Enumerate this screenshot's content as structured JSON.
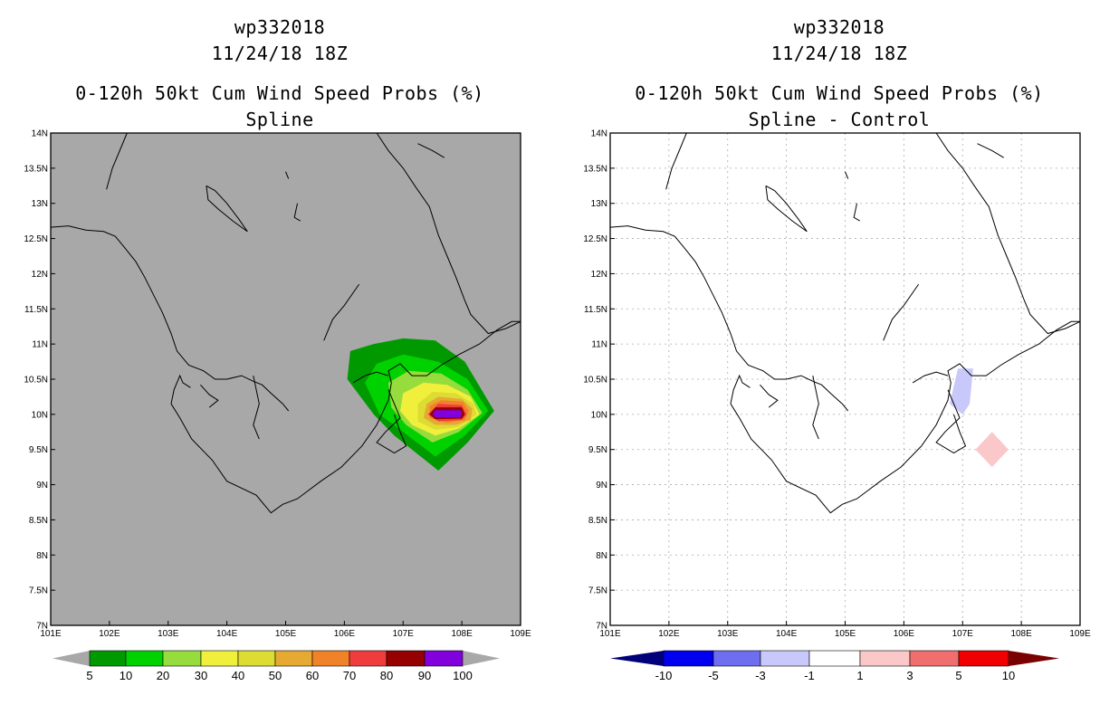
{
  "chart_data": [
    {
      "type": "heatmap",
      "storm_id": "wp332018",
      "datetime": "11/24/18 18Z",
      "title": "0-120h 50kt Cum Wind Speed Probs (%)",
      "subtitle": "Spline",
      "x_ticks": [
        "101E",
        "102E",
        "103E",
        "104E",
        "105E",
        "106E",
        "107E",
        "108E",
        "109E"
      ],
      "y_ticks": [
        "7N",
        "7.5N",
        "8N",
        "8.5N",
        "9N",
        "9.5N",
        "10N",
        "10.5N",
        "11N",
        "11.5N",
        "12N",
        "12.5N",
        "13N",
        "13.5N",
        "14N"
      ],
      "xlim": [
        101,
        109
      ],
      "ylim": [
        7,
        14
      ],
      "grid": false,
      "background": "#a8a8a8",
      "colorbar": {
        "labels": [
          "5",
          "10",
          "20",
          "30",
          "40",
          "50",
          "60",
          "70",
          "80",
          "90",
          "100"
        ],
        "colors": [
          "#009a00",
          "#00d200",
          "#96dc3c",
          "#f0f03c",
          "#dcdc32",
          "#e6aa32",
          "#f08228",
          "#f03c3c",
          "#960000",
          "#8200dc"
        ],
        "end_color": "#a8a8a8"
      },
      "max_probability_center": [
        107.9,
        10.0
      ]
    },
    {
      "type": "heatmap",
      "storm_id": "wp332018",
      "datetime": "11/24/18 18Z",
      "title": "0-120h 50kt Cum Wind Speed Probs (%)",
      "subtitle": "Spline - Control",
      "x_ticks": [
        "101E",
        "102E",
        "103E",
        "104E",
        "105E",
        "106E",
        "107E",
        "108E",
        "109E"
      ],
      "y_ticks": [
        "7N",
        "7.5N",
        "8N",
        "8.5N",
        "9N",
        "9.5N",
        "10N",
        "10.5N",
        "11N",
        "11.5N",
        "12N",
        "12.5N",
        "13N",
        "13.5N",
        "14N"
      ],
      "xlim": [
        101,
        109
      ],
      "ylim": [
        7,
        14
      ],
      "grid": true,
      "background": "#ffffff",
      "colorbar": {
        "labels": [
          "-10",
          "-5",
          "-3",
          "-1",
          "1",
          "3",
          "5",
          "10"
        ],
        "colors": [
          "#00007a",
          "#0000f0",
          "#6e6ef0",
          "#c8c8fa",
          "#ffffff",
          "#fac8c8",
          "#f06e6e",
          "#f00000",
          "#7a0000"
        ]
      },
      "difference_areas": [
        {
          "sign": "negative",
          "center": [
            107.0,
            10.2
          ],
          "color": "#c8c8fa"
        },
        {
          "sign": "positive",
          "center": [
            107.5,
            9.5
          ],
          "color": "#fac8c8"
        }
      ]
    }
  ]
}
